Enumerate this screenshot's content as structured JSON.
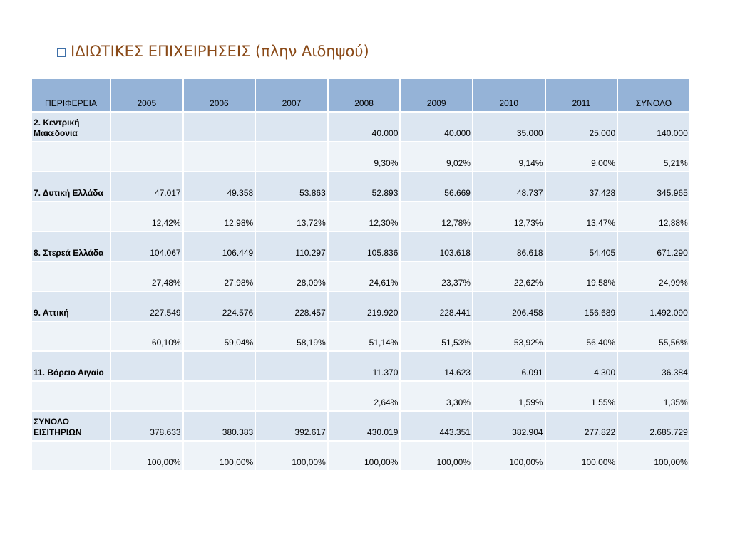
{
  "title": "ΙΔΙΩΤΙΚΕΣ ΕΠΙΧΕΙΡΗΣΕΙΣ (πλην Αιδηψού)",
  "table": {
    "headers": [
      "ΠΕΡΙΦΕΡΕΙΑ",
      "2005",
      "2006",
      "2007",
      "2008",
      "2009",
      "2010",
      "2011",
      "ΣΥΝΟΛΟ"
    ],
    "rows": [
      {
        "region": "2. Κεντρική Μακεδονία",
        "cells": [
          "",
          "",
          "",
          "40.000",
          "40.000",
          "35.000",
          "25.000",
          "140.000"
        ]
      },
      {
        "region": "",
        "cells": [
          "",
          "",
          "",
          "9,30%",
          "9,02%",
          "9,14%",
          "9,00%",
          "5,21%"
        ]
      },
      {
        "region": "7. Δυτική Ελλάδα",
        "cells": [
          "47.017",
          "49.358",
          "53.863",
          "52.893",
          "56.669",
          "48.737",
          "37.428",
          "345.965"
        ]
      },
      {
        "region": "",
        "cells": [
          "12,42%",
          "12,98%",
          "13,72%",
          "12,30%",
          "12,78%",
          "12,73%",
          "13,47%",
          "12,88%"
        ]
      },
      {
        "region": "8. Στερεά Ελλάδα",
        "cells": [
          "104.067",
          "106.449",
          "110.297",
          "105.836",
          "103.618",
          "86.618",
          "54.405",
          "671.290"
        ]
      },
      {
        "region": "",
        "cells": [
          "27,48%",
          "27,98%",
          "28,09%",
          "24,61%",
          "23,37%",
          "22,62%",
          "19,58%",
          "24,99%"
        ]
      },
      {
        "region": "9. Αττική",
        "cells": [
          "227.549",
          "224.576",
          "228.457",
          "219.920",
          "228.441",
          "206.458",
          "156.689",
          "1.492.090"
        ]
      },
      {
        "region": "",
        "cells": [
          "60,10%",
          "59,04%",
          "58,19%",
          "51,14%",
          "51,53%",
          "53,92%",
          "56,40%",
          "55,56%"
        ]
      },
      {
        "region": "11. Βόρειο Αιγαίο",
        "cells": [
          "",
          "",
          "",
          "11.370",
          "14.623",
          "6.091",
          "4.300",
          "36.384"
        ]
      },
      {
        "region": "",
        "cells": [
          "",
          "",
          "",
          "2,64%",
          "3,30%",
          "1,59%",
          "1,55%",
          "1,35%"
        ]
      },
      {
        "region": "ΣΥΝΟΛΟ ΕΙΣΙΤΗΡΙΩΝ",
        "cells": [
          "378.633",
          "380.383",
          "392.617",
          "430.019",
          "443.351",
          "382.904",
          "277.822",
          "2.685.729"
        ]
      },
      {
        "region": "",
        "cells": [
          "100,00%",
          "100,00%",
          "100,00%",
          "100,00%",
          "100,00%",
          "100,00%",
          "100,00%",
          "100,00%"
        ]
      }
    ]
  },
  "colors": {
    "title": "#8a4a18",
    "bullet": "#3d6fa8",
    "header_bg": "#95b3d7",
    "value_row_bg": "#dce6f1",
    "percent_row_bg": "#eef3f8"
  },
  "icons": {
    "bullet": "checkbox-bullet-icon"
  }
}
